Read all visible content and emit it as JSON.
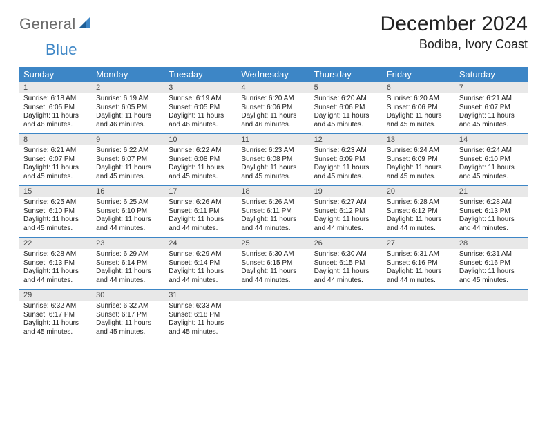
{
  "logo": {
    "word1": "General",
    "word2": "Blue"
  },
  "title": "December 2024",
  "location": "Bodiba, Ivory Coast",
  "colors": {
    "brand_blue": "#3d86c6",
    "header_bg": "#3d86c6",
    "header_text": "#ffffff",
    "daynum_bg": "#e8e8e8",
    "row_border": "#3d86c6",
    "logo_gray": "#6b6b6b"
  },
  "day_names": [
    "Sunday",
    "Monday",
    "Tuesday",
    "Wednesday",
    "Thursday",
    "Friday",
    "Saturday"
  ],
  "labels": {
    "sunrise": "Sunrise:",
    "sunset": "Sunset:",
    "daylight": "Daylight:"
  },
  "weeks": [
    [
      {
        "n": "1",
        "sr": "6:18 AM",
        "ss": "6:05 PM",
        "dl": "11 hours and 46 minutes."
      },
      {
        "n": "2",
        "sr": "6:19 AM",
        "ss": "6:05 PM",
        "dl": "11 hours and 46 minutes."
      },
      {
        "n": "3",
        "sr": "6:19 AM",
        "ss": "6:05 PM",
        "dl": "11 hours and 46 minutes."
      },
      {
        "n": "4",
        "sr": "6:20 AM",
        "ss": "6:06 PM",
        "dl": "11 hours and 46 minutes."
      },
      {
        "n": "5",
        "sr": "6:20 AM",
        "ss": "6:06 PM",
        "dl": "11 hours and 45 minutes."
      },
      {
        "n": "6",
        "sr": "6:20 AM",
        "ss": "6:06 PM",
        "dl": "11 hours and 45 minutes."
      },
      {
        "n": "7",
        "sr": "6:21 AM",
        "ss": "6:07 PM",
        "dl": "11 hours and 45 minutes."
      }
    ],
    [
      {
        "n": "8",
        "sr": "6:21 AM",
        "ss": "6:07 PM",
        "dl": "11 hours and 45 minutes."
      },
      {
        "n": "9",
        "sr": "6:22 AM",
        "ss": "6:07 PM",
        "dl": "11 hours and 45 minutes."
      },
      {
        "n": "10",
        "sr": "6:22 AM",
        "ss": "6:08 PM",
        "dl": "11 hours and 45 minutes."
      },
      {
        "n": "11",
        "sr": "6:23 AM",
        "ss": "6:08 PM",
        "dl": "11 hours and 45 minutes."
      },
      {
        "n": "12",
        "sr": "6:23 AM",
        "ss": "6:09 PM",
        "dl": "11 hours and 45 minutes."
      },
      {
        "n": "13",
        "sr": "6:24 AM",
        "ss": "6:09 PM",
        "dl": "11 hours and 45 minutes."
      },
      {
        "n": "14",
        "sr": "6:24 AM",
        "ss": "6:10 PM",
        "dl": "11 hours and 45 minutes."
      }
    ],
    [
      {
        "n": "15",
        "sr": "6:25 AM",
        "ss": "6:10 PM",
        "dl": "11 hours and 45 minutes."
      },
      {
        "n": "16",
        "sr": "6:25 AM",
        "ss": "6:10 PM",
        "dl": "11 hours and 44 minutes."
      },
      {
        "n": "17",
        "sr": "6:26 AM",
        "ss": "6:11 PM",
        "dl": "11 hours and 44 minutes."
      },
      {
        "n": "18",
        "sr": "6:26 AM",
        "ss": "6:11 PM",
        "dl": "11 hours and 44 minutes."
      },
      {
        "n": "19",
        "sr": "6:27 AM",
        "ss": "6:12 PM",
        "dl": "11 hours and 44 minutes."
      },
      {
        "n": "20",
        "sr": "6:28 AM",
        "ss": "6:12 PM",
        "dl": "11 hours and 44 minutes."
      },
      {
        "n": "21",
        "sr": "6:28 AM",
        "ss": "6:13 PM",
        "dl": "11 hours and 44 minutes."
      }
    ],
    [
      {
        "n": "22",
        "sr": "6:28 AM",
        "ss": "6:13 PM",
        "dl": "11 hours and 44 minutes."
      },
      {
        "n": "23",
        "sr": "6:29 AM",
        "ss": "6:14 PM",
        "dl": "11 hours and 44 minutes."
      },
      {
        "n": "24",
        "sr": "6:29 AM",
        "ss": "6:14 PM",
        "dl": "11 hours and 44 minutes."
      },
      {
        "n": "25",
        "sr": "6:30 AM",
        "ss": "6:15 PM",
        "dl": "11 hours and 44 minutes."
      },
      {
        "n": "26",
        "sr": "6:30 AM",
        "ss": "6:15 PM",
        "dl": "11 hours and 44 minutes."
      },
      {
        "n": "27",
        "sr": "6:31 AM",
        "ss": "6:16 PM",
        "dl": "11 hours and 44 minutes."
      },
      {
        "n": "28",
        "sr": "6:31 AM",
        "ss": "6:16 PM",
        "dl": "11 hours and 45 minutes."
      }
    ],
    [
      {
        "n": "29",
        "sr": "6:32 AM",
        "ss": "6:17 PM",
        "dl": "11 hours and 45 minutes."
      },
      {
        "n": "30",
        "sr": "6:32 AM",
        "ss": "6:17 PM",
        "dl": "11 hours and 45 minutes."
      },
      {
        "n": "31",
        "sr": "6:33 AM",
        "ss": "6:18 PM",
        "dl": "11 hours and 45 minutes."
      },
      null,
      null,
      null,
      null
    ]
  ]
}
